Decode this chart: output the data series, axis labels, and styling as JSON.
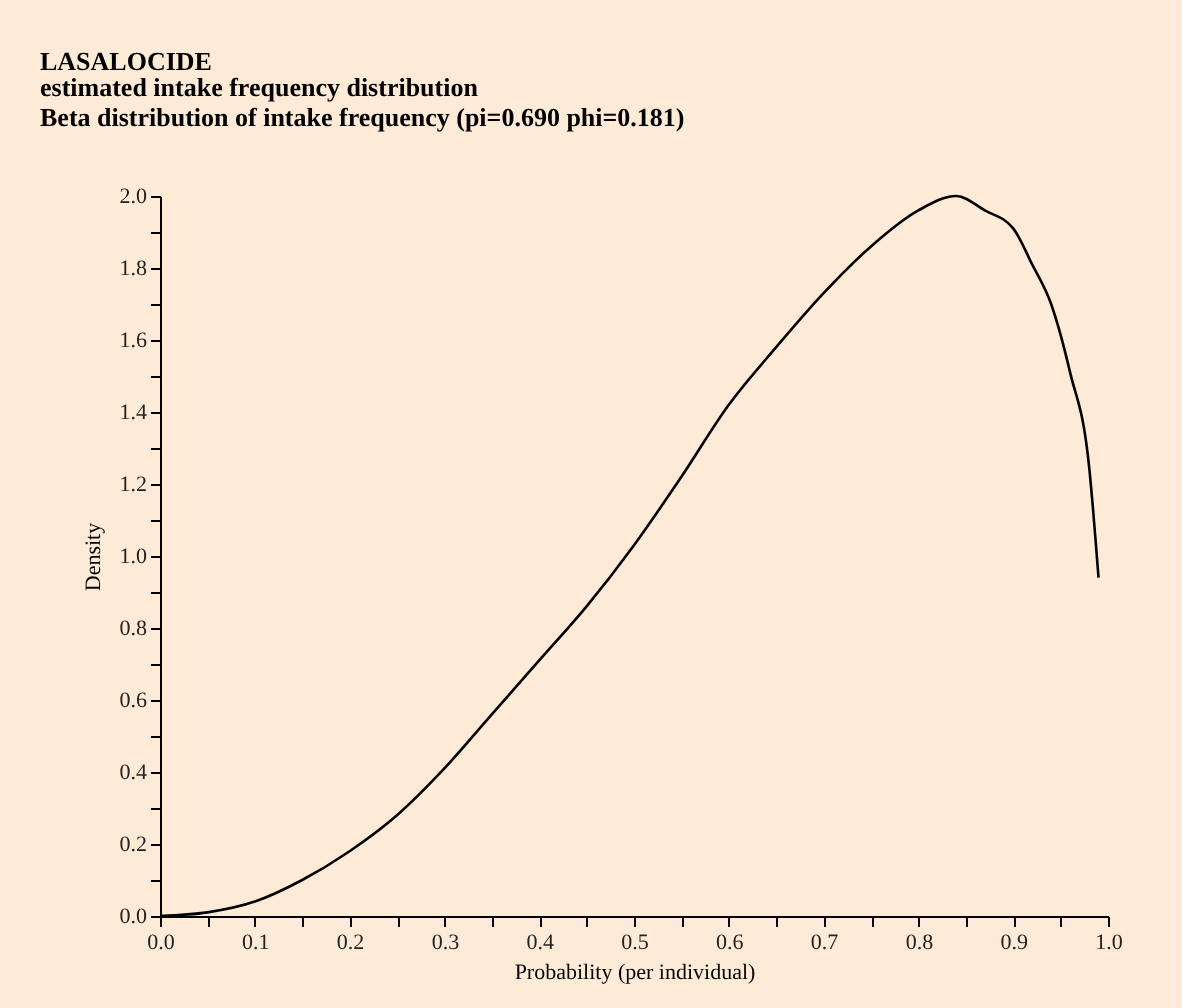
{
  "chart_data": {
    "type": "line",
    "title": "LASALOCIDE",
    "subtitle": "estimated intake frequency distribution\nBeta distribution of intake frequency (pi=0.690  phi=0.181)",
    "xlabel": "Probability (per individual)",
    "ylabel": "Density",
    "x": [
      0.0,
      0.05,
      0.1,
      0.15,
      0.2,
      0.25,
      0.3,
      0.35,
      0.4,
      0.45,
      0.5,
      0.55,
      0.6,
      0.65,
      0.7,
      0.75,
      0.8,
      0.84,
      0.87,
      0.9,
      0.92,
      0.94,
      0.96,
      0.98,
      0.99
    ],
    "series": [
      {
        "color": "#000000",
        "values": [
          0.0,
          0.01,
          0.04,
          0.1,
          0.18,
          0.28,
          0.41,
          0.56,
          0.71,
          0.86,
          1.03,
          1.22,
          1.42,
          1.58,
          1.73,
          1.86,
          1.96,
          2.0,
          1.96,
          1.91,
          1.81,
          1.7,
          1.51,
          1.25,
          0.94
        ]
      }
    ],
    "xlim": [
      0,
      1
    ],
    "ylim": [
      0,
      2
    ],
    "xticks": [
      {
        "value": 0,
        "label": "0.0"
      },
      {
        "value": 0.05,
        "label": null
      },
      {
        "value": 0.1,
        "label": "0.1"
      },
      {
        "value": 0.15,
        "label": null
      },
      {
        "value": 0.2,
        "label": "0.2"
      },
      {
        "value": 0.25,
        "label": null
      },
      {
        "value": 0.3,
        "label": "0.3"
      },
      {
        "value": 0.35,
        "label": null
      },
      {
        "value": 0.4,
        "label": "0.4"
      },
      {
        "value": 0.45,
        "label": null
      },
      {
        "value": 0.5,
        "label": "0.5"
      },
      {
        "value": 0.55,
        "label": null
      },
      {
        "value": 0.6,
        "label": "0.6"
      },
      {
        "value": 0.65,
        "label": null
      },
      {
        "value": 0.7,
        "label": "0.7"
      },
      {
        "value": 0.75,
        "label": null
      },
      {
        "value": 0.8,
        "label": "0.8"
      },
      {
        "value": 0.85,
        "label": null
      },
      {
        "value": 0.9,
        "label": "0.9"
      },
      {
        "value": 0.95,
        "label": null
      },
      {
        "value": 1,
        "label": "1.0"
      }
    ],
    "yticks": [
      {
        "value": 0,
        "label": "0.0"
      },
      {
        "value": 0.1,
        "label": null
      },
      {
        "value": 0.2,
        "label": "0.2"
      },
      {
        "value": 0.3,
        "label": null
      },
      {
        "value": 0.4,
        "label": "0.4"
      },
      {
        "value": 0.5,
        "label": null
      },
      {
        "value": 0.6,
        "label": "0.6"
      },
      {
        "value": 0.7,
        "label": null
      },
      {
        "value": 0.8,
        "label": "0.8"
      },
      {
        "value": 0.9,
        "label": null
      },
      {
        "value": 1,
        "label": "1.0"
      },
      {
        "value": 1.1,
        "label": null
      },
      {
        "value": 1.2,
        "label": "1.2"
      },
      {
        "value": 1.3,
        "label": null
      },
      {
        "value": 1.4,
        "label": "1.4"
      },
      {
        "value": 1.5,
        "label": null
      },
      {
        "value": 1.6,
        "label": "1.6"
      },
      {
        "value": 1.7,
        "label": null
      },
      {
        "value": 1.8,
        "label": "1.8"
      },
      {
        "value": 1.9,
        "label": null
      },
      {
        "value": 2,
        "label": "2.0"
      }
    ],
    "grid": false,
    "marker": "none",
    "line_style": "solid"
  }
}
